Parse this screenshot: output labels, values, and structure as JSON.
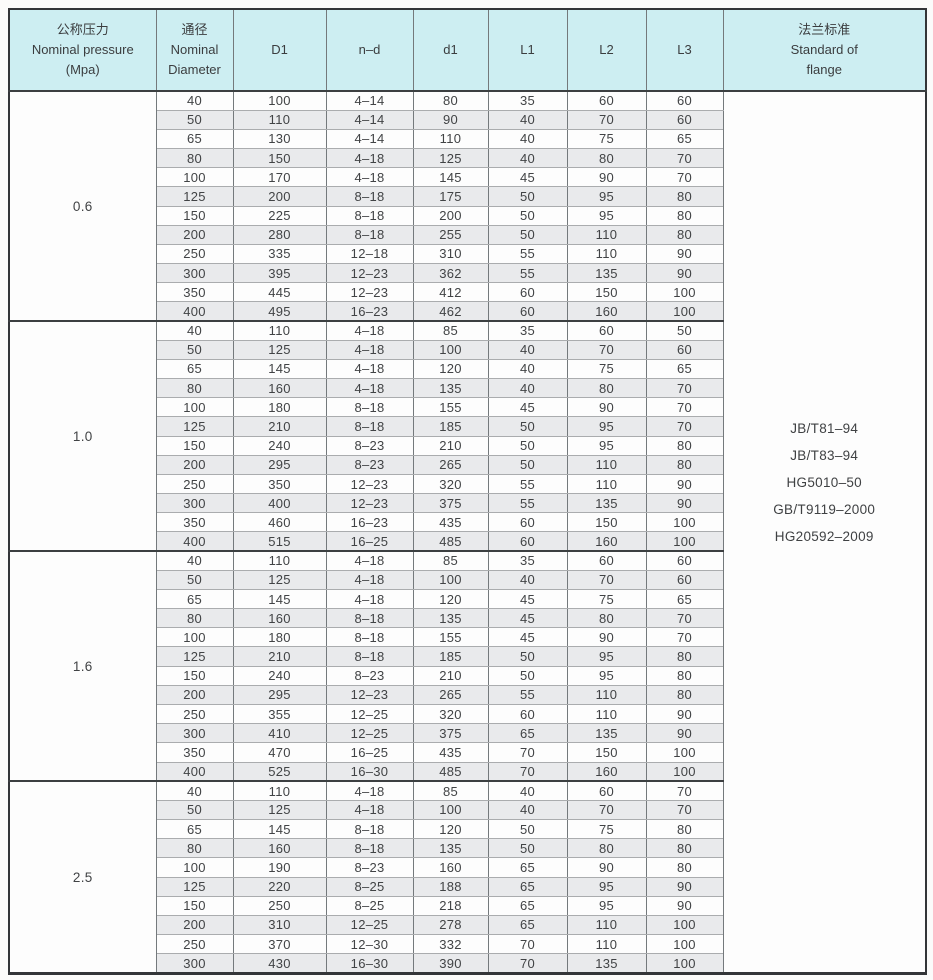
{
  "colors": {
    "header_bg": "#cdeef2",
    "row_stripe": "#e9eaec",
    "grid_light": "#aaacae",
    "grid_dark": "#74797c",
    "outer_border": "#333538",
    "text": "#3f4143"
  },
  "header": {
    "columns": [
      "公称压力\nNominal pressure\n(Mpa)",
      "通径\nNominal\nDiameter",
      "D1",
      "n–d",
      "d1",
      "L1",
      "L2",
      "L3",
      "法兰标准\nStandard of\nflange"
    ]
  },
  "groups": [
    {
      "pressure": "0.6",
      "rows": [
        [
          "40",
          "100",
          "4–14",
          "80",
          "35",
          "60",
          "60"
        ],
        [
          "50",
          "110",
          "4–14",
          "90",
          "40",
          "70",
          "60"
        ],
        [
          "65",
          "130",
          "4–14",
          "110",
          "40",
          "75",
          "65"
        ],
        [
          "80",
          "150",
          "4–18",
          "125",
          "40",
          "80",
          "70"
        ],
        [
          "100",
          "170",
          "4–18",
          "145",
          "45",
          "90",
          "70"
        ],
        [
          "125",
          "200",
          "8–18",
          "175",
          "50",
          "95",
          "80"
        ],
        [
          "150",
          "225",
          "8–18",
          "200",
          "50",
          "95",
          "80"
        ],
        [
          "200",
          "280",
          "8–18",
          "255",
          "50",
          "110",
          "80"
        ],
        [
          "250",
          "335",
          "12–18",
          "310",
          "55",
          "110",
          "90"
        ],
        [
          "300",
          "395",
          "12–23",
          "362",
          "55",
          "135",
          "90"
        ],
        [
          "350",
          "445",
          "12–23",
          "412",
          "60",
          "150",
          "100"
        ],
        [
          "400",
          "495",
          "16–23",
          "462",
          "60",
          "160",
          "100"
        ]
      ]
    },
    {
      "pressure": "1.0",
      "rows": [
        [
          "40",
          "110",
          "4–18",
          "85",
          "35",
          "60",
          "50"
        ],
        [
          "50",
          "125",
          "4–18",
          "100",
          "40",
          "70",
          "60"
        ],
        [
          "65",
          "145",
          "4–18",
          "120",
          "40",
          "75",
          "65"
        ],
        [
          "80",
          "160",
          "4–18",
          "135",
          "40",
          "80",
          "70"
        ],
        [
          "100",
          "180",
          "8–18",
          "155",
          "45",
          "90",
          "70"
        ],
        [
          "125",
          "210",
          "8–18",
          "185",
          "50",
          "95",
          "70"
        ],
        [
          "150",
          "240",
          "8–23",
          "210",
          "50",
          "95",
          "80"
        ],
        [
          "200",
          "295",
          "8–23",
          "265",
          "50",
          "110",
          "80"
        ],
        [
          "250",
          "350",
          "12–23",
          "320",
          "55",
          "110",
          "90"
        ],
        [
          "300",
          "400",
          "12–23",
          "375",
          "55",
          "135",
          "90"
        ],
        [
          "350",
          "460",
          "16–23",
          "435",
          "60",
          "150",
          "100"
        ],
        [
          "400",
          "515",
          "16–25",
          "485",
          "60",
          "160",
          "100"
        ]
      ]
    },
    {
      "pressure": "1.6",
      "rows": [
        [
          "40",
          "110",
          "4–18",
          "85",
          "35",
          "60",
          "60"
        ],
        [
          "50",
          "125",
          "4–18",
          "100",
          "40",
          "70",
          "60"
        ],
        [
          "65",
          "145",
          "4–18",
          "120",
          "45",
          "75",
          "65"
        ],
        [
          "80",
          "160",
          "8–18",
          "135",
          "45",
          "80",
          "70"
        ],
        [
          "100",
          "180",
          "8–18",
          "155",
          "45",
          "90",
          "70"
        ],
        [
          "125",
          "210",
          "8–18",
          "185",
          "50",
          "95",
          "80"
        ],
        [
          "150",
          "240",
          "8–23",
          "210",
          "50",
          "95",
          "80"
        ],
        [
          "200",
          "295",
          "12–23",
          "265",
          "55",
          "110",
          "80"
        ],
        [
          "250",
          "355",
          "12–25",
          "320",
          "60",
          "110",
          "90"
        ],
        [
          "300",
          "410",
          "12–25",
          "375",
          "65",
          "135",
          "90"
        ],
        [
          "350",
          "470",
          "16–25",
          "435",
          "70",
          "150",
          "100"
        ],
        [
          "400",
          "525",
          "16–30",
          "485",
          "70",
          "160",
          "100"
        ]
      ]
    },
    {
      "pressure": "2.5",
      "rows": [
        [
          "40",
          "110",
          "4–18",
          "85",
          "40",
          "60",
          "70"
        ],
        [
          "50",
          "125",
          "4–18",
          "100",
          "40",
          "70",
          "70"
        ],
        [
          "65",
          "145",
          "8–18",
          "120",
          "50",
          "75",
          "80"
        ],
        [
          "80",
          "160",
          "8–18",
          "135",
          "50",
          "80",
          "80"
        ],
        [
          "100",
          "190",
          "8–23",
          "160",
          "65",
          "90",
          "80"
        ],
        [
          "125",
          "220",
          "8–25",
          "188",
          "65",
          "95",
          "90"
        ],
        [
          "150",
          "250",
          "8–25",
          "218",
          "65",
          "95",
          "90"
        ],
        [
          "200",
          "310",
          "12–25",
          "278",
          "65",
          "110",
          "100"
        ],
        [
          "250",
          "370",
          "12–30",
          "332",
          "70",
          "110",
          "100"
        ],
        [
          "300",
          "430",
          "16–30",
          "390",
          "70",
          "135",
          "100"
        ]
      ]
    }
  ],
  "standards": [
    "JB/T81–94",
    "JB/T83–94",
    "HG5010–50",
    "GB/T9119–2000",
    "HG20592–2009"
  ]
}
